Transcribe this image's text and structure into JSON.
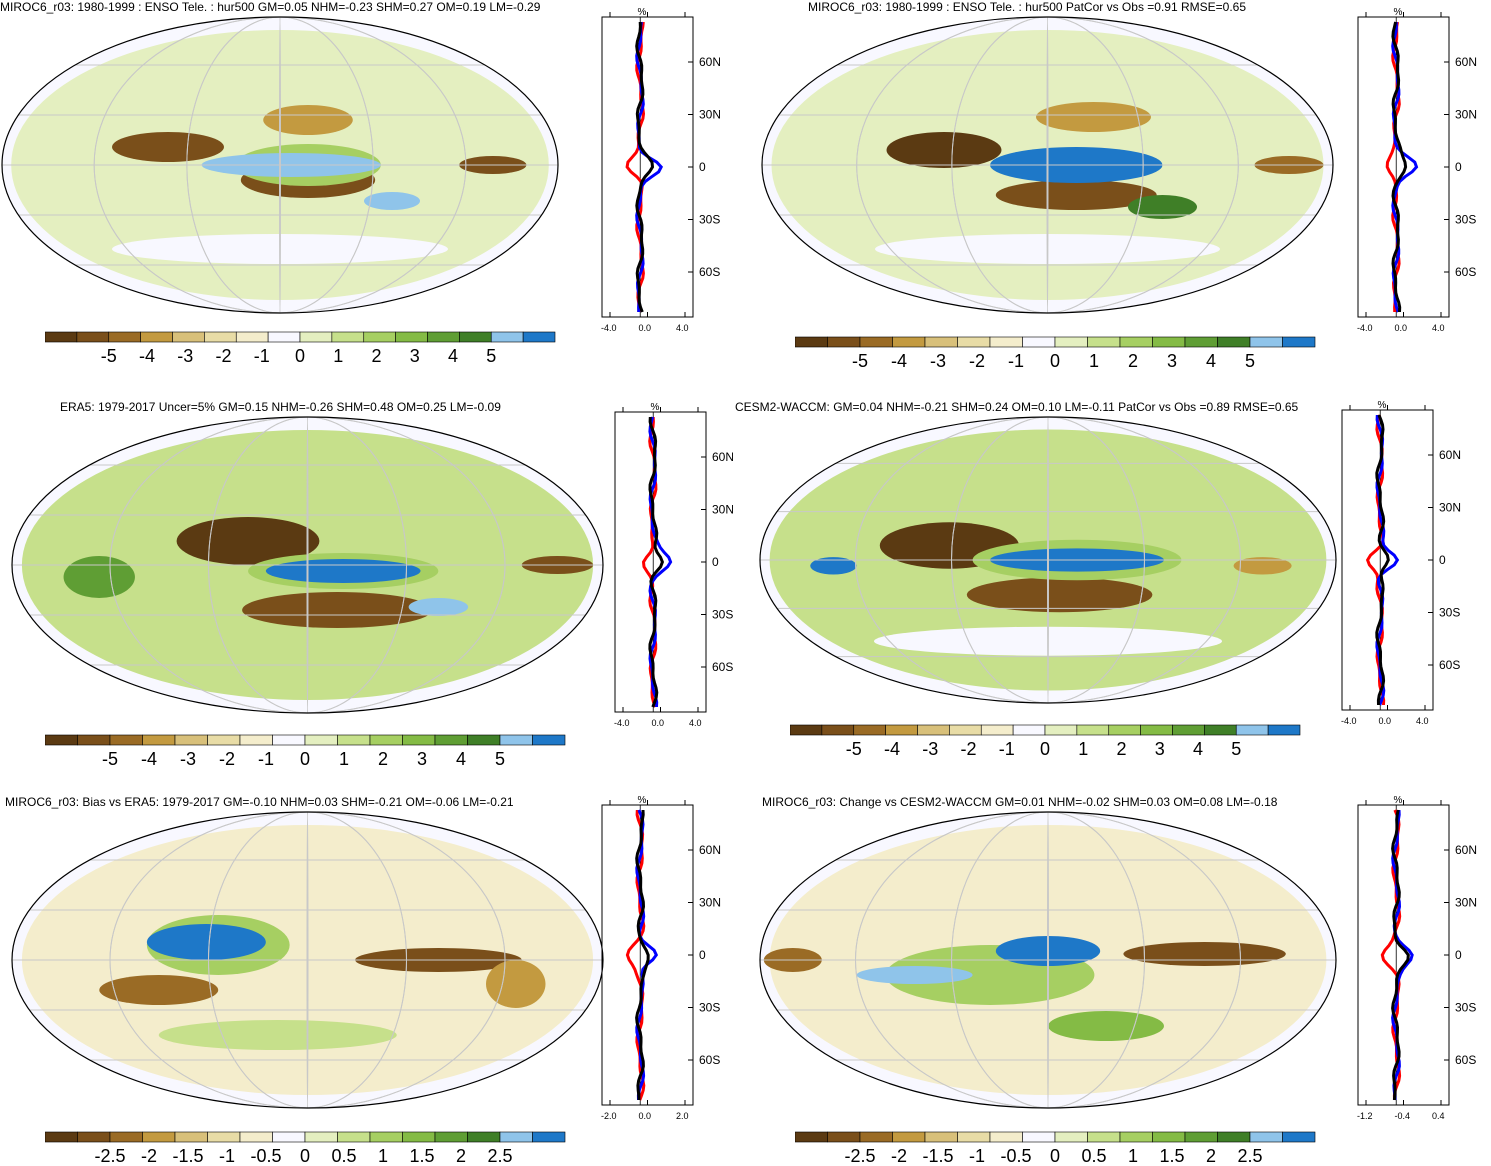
{
  "colors": {
    "scale": [
      "#5b3a12",
      "#7a4f1a",
      "#9a6b25",
      "#c39a40",
      "#d8c07a",
      "#e8dca6",
      "#f4edcc",
      "#f8f8ff",
      "#e4efc0",
      "#c6e08b",
      "#a6cf62",
      "#84bb45",
      "#5f9e34",
      "#3f7f27",
      "#8fc4ea",
      "#1e78c8"
    ],
    "obs_line": "#ff0000",
    "model_line": "#0000ff",
    "diff_line": "#000000",
    "grid": "#c8c8c8"
  },
  "panels": [
    {
      "id": "p1",
      "title": "MIROC6_r03: 1980-1999 : ENSO Tele. : hur500 GM=0.05 NHM=-0.23 SHM=0.27 OM=0.19 LM=-0.29",
      "lat_ticks": [
        "60N",
        "30N",
        "0",
        "30S",
        "60S"
      ],
      "x_ticks": [
        "-4.0",
        "0.0",
        "4.0"
      ],
      "unit": "%",
      "colorbar_labels": [
        "-5",
        "-4",
        "-3",
        "-2",
        "-1",
        "0",
        "1",
        "2",
        "3",
        "4",
        "5"
      ]
    },
    {
      "id": "p2",
      "title": "MIROC6_r03: 1980-1999 : ENSO Tele. : hur500 PatCor vs Obs =0.91 RMSE=0.65",
      "lat_ticks": [
        "60N",
        "30N",
        "0",
        "30S",
        "60S"
      ],
      "x_ticks": [
        "-4.0",
        "0.0",
        "4.0"
      ],
      "unit": "%",
      "colorbar_labels": [
        "-5",
        "-4",
        "-3",
        "-2",
        "-1",
        "0",
        "1",
        "2",
        "3",
        "4",
        "5"
      ]
    },
    {
      "id": "p3",
      "title": "ERA5: 1979-2017 Uncer=5% GM=0.15 NHM=-0.26 SHM=0.48 OM=0.25 LM=-0.09",
      "lat_ticks": [
        "60N",
        "30N",
        "0",
        "30S",
        "60S"
      ],
      "x_ticks": [
        "-4.0",
        "0.0",
        "4.0"
      ],
      "unit": "%",
      "colorbar_labels": [
        "-5",
        "-4",
        "-3",
        "-2",
        "-1",
        "0",
        "1",
        "2",
        "3",
        "4",
        "5"
      ]
    },
    {
      "id": "p4",
      "title": "CESM2-WACCM: GM=0.04 NHM=-0.21 SHM=0.24 OM=0.10 LM=-0.11 PatCor vs Obs =0.89 RMSE=0.65",
      "lat_ticks": [
        "60N",
        "30N",
        "0",
        "30S",
        "60S"
      ],
      "x_ticks": [
        "-4.0",
        "0.0",
        "4.0"
      ],
      "unit": "%",
      "colorbar_labels": [
        "-5",
        "-4",
        "-3",
        "-2",
        "-1",
        "0",
        "1",
        "2",
        "3",
        "4",
        "5"
      ]
    },
    {
      "id": "p5",
      "title": "MIROC6_r03: Bias vs ERA5: 1979-2017 GM=-0.10 NHM=0.03 SHM=-0.21 OM=-0.06 LM=-0.21",
      "lat_ticks": [
        "60N",
        "30N",
        "0",
        "30S",
        "60S"
      ],
      "x_ticks": [
        "-2.0",
        "0.0",
        "2.0"
      ],
      "unit": "%",
      "colorbar_labels": [
        "-2.5",
        "-2",
        "-1.5",
        "-1",
        "-0.5",
        "0",
        "0.5",
        "1",
        "1.5",
        "2",
        "2.5"
      ]
    },
    {
      "id": "p6",
      "title": "MIROC6_r03: Change vs CESM2-WACCM GM=0.01 NHM=-0.02 SHM=0.03 OM=0.08 LM=-0.18",
      "lat_ticks": [
        "60N",
        "30N",
        "0",
        "30S",
        "60S"
      ],
      "x_ticks": [
        "-1.2",
        "-0.4",
        "0.4"
      ],
      "unit": "%",
      "colorbar_labels": [
        "-2.5",
        "-2",
        "-1.5",
        "-1",
        "-0.5",
        "0",
        "0.5",
        "1",
        "1.5",
        "2",
        "2.5"
      ]
    }
  ]
}
